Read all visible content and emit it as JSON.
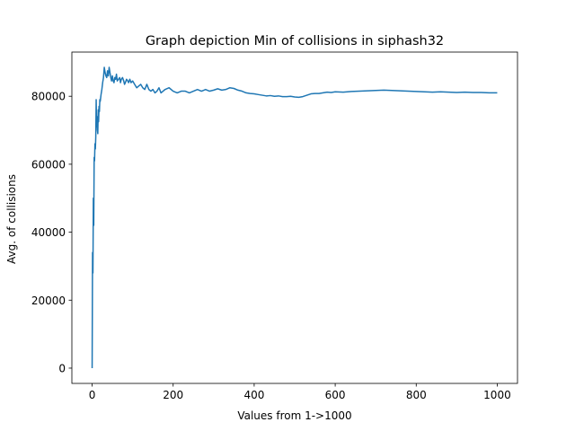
{
  "chart_data": {
    "type": "line",
    "title": "Graph depiction Min of collisions in siphash32",
    "xlabel": "Values from 1->1000",
    "ylabel": "Avg. of collisions",
    "xlim": [
      -50,
      1050
    ],
    "ylim": [
      -4500,
      93000
    ],
    "xticks": [
      0,
      200,
      400,
      600,
      800,
      1000
    ],
    "yticks": [
      0,
      20000,
      40000,
      60000,
      80000
    ],
    "grid": false,
    "legend": "none",
    "series": [
      {
        "color": "#1f77b4",
        "x": [
          0,
          1,
          2,
          3,
          4,
          5,
          6,
          7,
          8,
          9,
          10,
          11,
          12,
          13,
          14,
          15,
          16,
          17,
          18,
          19,
          20,
          22,
          24,
          26,
          28,
          30,
          32,
          34,
          36,
          38,
          40,
          42,
          44,
          46,
          48,
          50,
          52,
          54,
          56,
          58,
          60,
          62,
          65,
          68,
          70,
          72,
          75,
          78,
          80,
          82,
          85,
          88,
          90,
          93,
          96,
          100,
          105,
          110,
          115,
          120,
          125,
          130,
          135,
          140,
          145,
          150,
          155,
          160,
          165,
          170,
          175,
          180,
          190,
          200,
          210,
          220,
          230,
          240,
          250,
          260,
          270,
          280,
          290,
          300,
          310,
          320,
          330,
          340,
          350,
          360,
          370,
          380,
          390,
          400,
          410,
          420,
          430,
          440,
          450,
          460,
          470,
          480,
          490,
          500,
          510,
          520,
          530,
          540,
          550,
          560,
          570,
          580,
          590,
          600,
          620,
          640,
          660,
          680,
          700,
          720,
          740,
          760,
          780,
          800,
          820,
          840,
          860,
          880,
          900,
          920,
          940,
          960,
          980,
          1000
        ],
        "y": [
          0,
          34000,
          28000,
          50000,
          42000,
          62000,
          61000,
          66000,
          64500,
          68000,
          79000,
          71000,
          74000,
          70000,
          69000,
          76000,
          72500,
          77000,
          75500,
          79000,
          78500,
          80500,
          82000,
          84000,
          85500,
          88500,
          87000,
          86000,
          85500,
          87500,
          86000,
          88500,
          87000,
          85500,
          84500,
          86000,
          84500,
          84000,
          85500,
          85000,
          86500,
          84500,
          85000,
          85500,
          84000,
          85000,
          85500,
          84500,
          83500,
          84000,
          85000,
          84500,
          84000,
          85000,
          84000,
          84500,
          83500,
          82500,
          83000,
          83500,
          82500,
          82000,
          83500,
          82000,
          81500,
          82000,
          81000,
          81500,
          82500,
          81000,
          81500,
          82000,
          82500,
          81500,
          81000,
          81500,
          81500,
          81000,
          81500,
          82000,
          81500,
          82000,
          81500,
          81800,
          82200,
          81800,
          82000,
          82500,
          82300,
          81800,
          81500,
          81000,
          80800,
          80700,
          80500,
          80300,
          80100,
          80200,
          80000,
          80100,
          79900,
          79900,
          80000,
          79800,
          79700,
          79900,
          80300,
          80700,
          80800,
          80800,
          81000,
          81200,
          81100,
          81300,
          81200,
          81400,
          81500,
          81600,
          81700,
          81800,
          81700,
          81600,
          81500,
          81400,
          81300,
          81200,
          81300,
          81200,
          81100,
          81200,
          81100,
          81100,
          81000,
          81000
        ]
      }
    ]
  }
}
